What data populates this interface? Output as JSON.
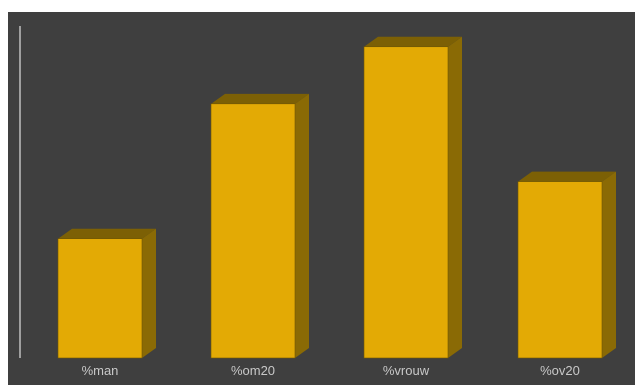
{
  "chart_data": {
    "type": "bar",
    "style": "3d-column",
    "categories": [
      "%man",
      "%om20",
      "%vrouw",
      "%ov20"
    ],
    "values": [
      115,
      245,
      300,
      170
    ],
    "ylim": [
      0,
      320
    ],
    "title": "",
    "xlabel": "",
    "ylabel": "",
    "grid": false,
    "legend": "none",
    "colors": {
      "background": "#3f3f3f",
      "bar_front": "#e3aa05",
      "bar_side": "#8a6a05",
      "bar_top": "#7c6005",
      "axis": "#bfbfbf",
      "label": "#c8c8c8"
    }
  }
}
